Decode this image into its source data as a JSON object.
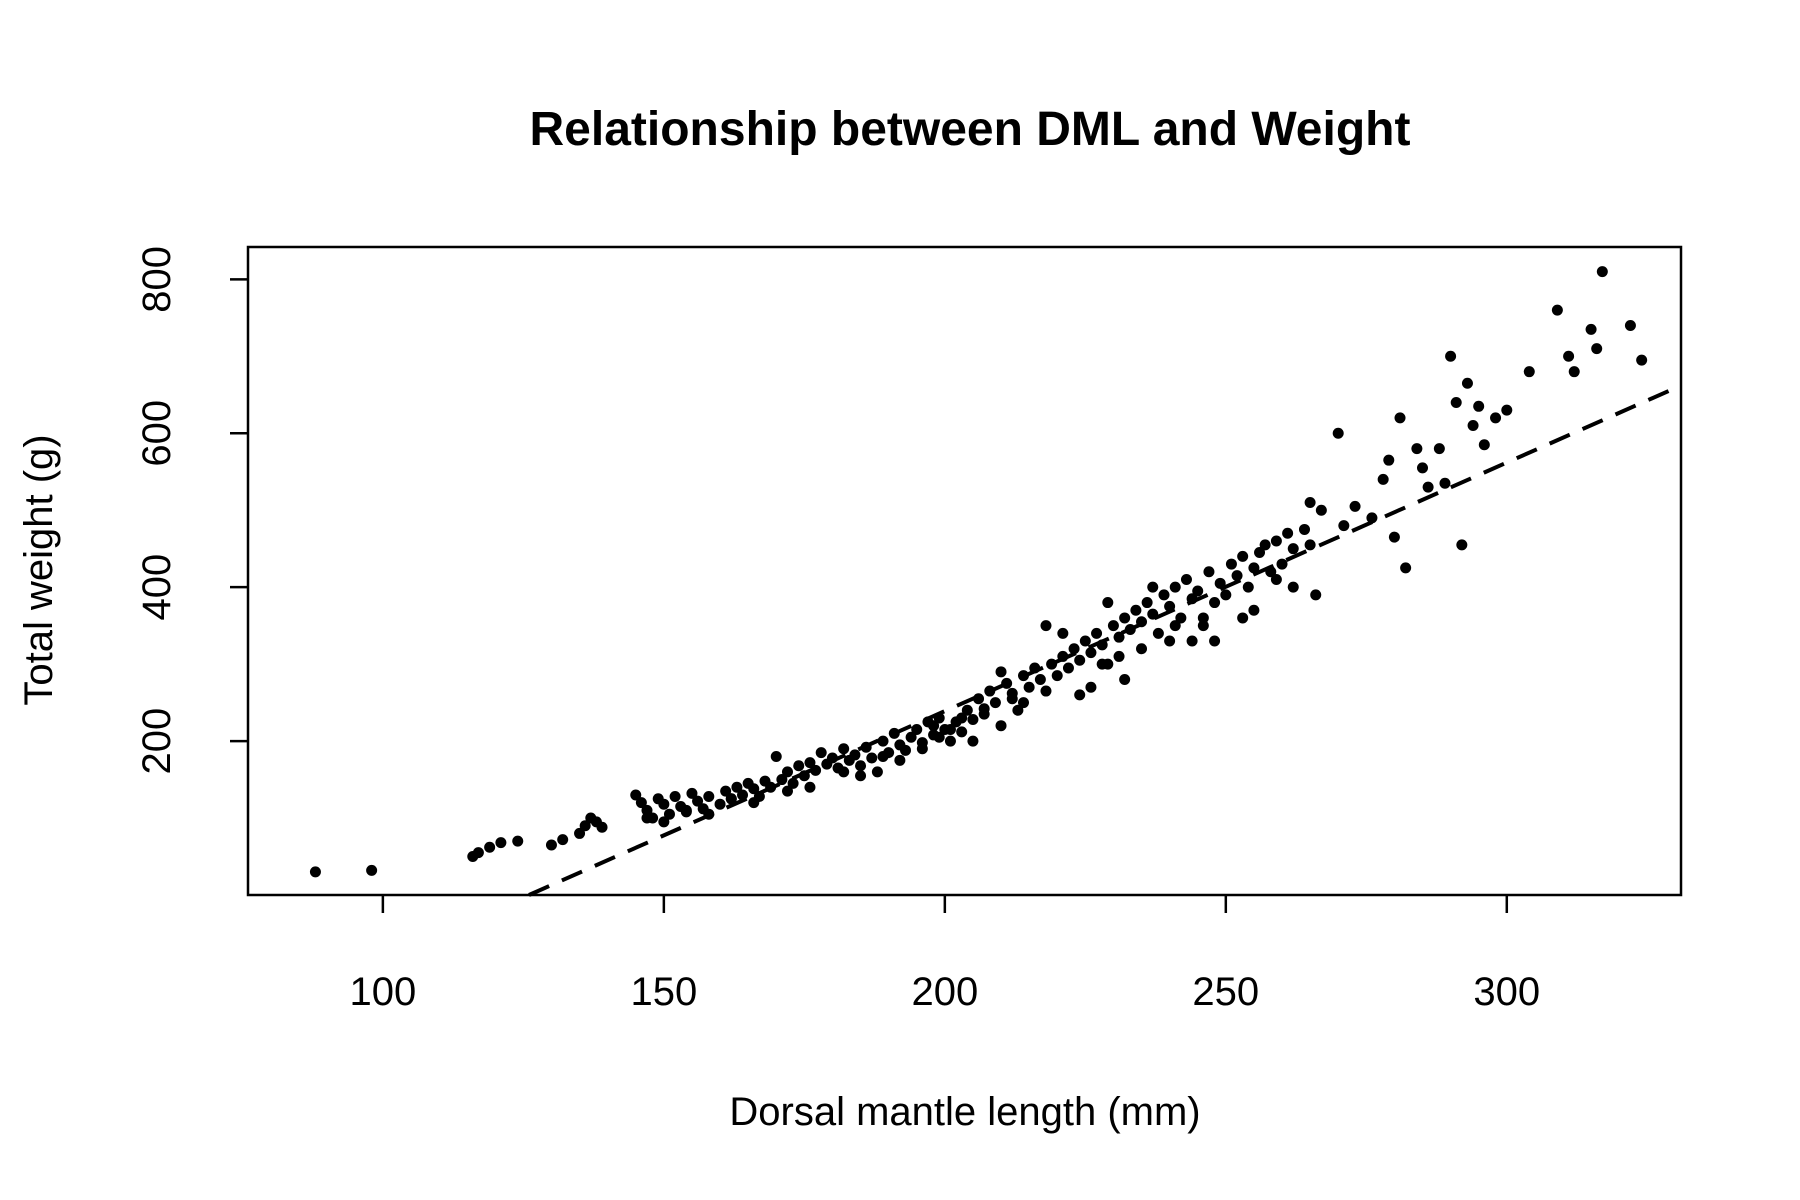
{
  "chart_data": {
    "type": "scatter",
    "title": "Relationship between DML and Weight",
    "xlabel": "Dorsal mantle length (mm)",
    "ylabel": "Total weight (g)",
    "xlim": [
      76,
      331
    ],
    "ylim": [
      0,
      842
    ],
    "xticks": [
      100,
      150,
      200,
      250,
      300
    ],
    "yticks": [
      200,
      400,
      600,
      800
    ],
    "xtick_labels": [
      "100",
      "150",
      "200",
      "250",
      "300"
    ],
    "ytick_labels": [
      "200",
      "400",
      "600",
      "800"
    ],
    "series": [
      {
        "name": "observations",
        "points": [
          [
            88,
            30
          ],
          [
            98,
            32
          ],
          [
            116,
            50
          ],
          [
            117,
            55
          ],
          [
            119,
            62
          ],
          [
            121,
            68
          ],
          [
            124,
            70
          ],
          [
            130,
            65
          ],
          [
            132,
            72
          ],
          [
            135,
            80
          ],
          [
            136,
            90
          ],
          [
            137,
            100
          ],
          [
            138,
            95
          ],
          [
            139,
            88
          ],
          [
            145,
            130
          ],
          [
            146,
            120
          ],
          [
            147,
            110
          ],
          [
            148,
            100
          ],
          [
            149,
            125
          ],
          [
            150,
            118
          ],
          [
            151,
            105
          ],
          [
            152,
            128
          ],
          [
            153,
            115
          ],
          [
            154,
            108
          ],
          [
            155,
            132
          ],
          [
            156,
            122
          ],
          [
            157,
            112
          ],
          [
            158,
            128
          ],
          [
            160,
            118
          ],
          [
            161,
            135
          ],
          [
            162,
            125
          ],
          [
            163,
            140
          ],
          [
            164,
            130
          ],
          [
            165,
            145
          ],
          [
            166,
            138
          ],
          [
            167,
            128
          ],
          [
            168,
            148
          ],
          [
            169,
            140
          ],
          [
            170,
            180
          ],
          [
            171,
            150
          ],
          [
            172,
            160
          ],
          [
            173,
            145
          ],
          [
            174,
            168
          ],
          [
            175,
            155
          ],
          [
            176,
            172
          ],
          [
            177,
            162
          ],
          [
            178,
            185
          ],
          [
            179,
            170
          ],
          [
            180,
            178
          ],
          [
            181,
            165
          ],
          [
            182,
            190
          ],
          [
            183,
            175
          ],
          [
            184,
            182
          ],
          [
            185,
            168
          ],
          [
            186,
            192
          ],
          [
            187,
            178
          ],
          [
            188,
            160
          ],
          [
            189,
            200
          ],
          [
            190,
            185
          ],
          [
            191,
            210
          ],
          [
            192,
            195
          ],
          [
            193,
            188
          ],
          [
            194,
            205
          ],
          [
            195,
            215
          ],
          [
            196,
            198
          ],
          [
            197,
            225
          ],
          [
            198,
            208
          ],
          [
            199,
            230
          ],
          [
            200,
            215
          ],
          [
            201,
            200
          ],
          [
            202,
            225
          ],
          [
            203,
            212
          ],
          [
            204,
            240
          ],
          [
            205,
            228
          ],
          [
            206,
            255
          ],
          [
            207,
            242
          ],
          [
            208,
            265
          ],
          [
            209,
            250
          ],
          [
            210,
            220
          ],
          [
            211,
            275
          ],
          [
            212,
            262
          ],
          [
            213,
            240
          ],
          [
            214,
            285
          ],
          [
            215,
            270
          ],
          [
            216,
            295
          ],
          [
            217,
            280
          ],
          [
            218,
            350
          ],
          [
            219,
            300
          ],
          [
            220,
            285
          ],
          [
            221,
            310
          ],
          [
            222,
            295
          ],
          [
            223,
            320
          ],
          [
            224,
            305
          ],
          [
            225,
            330
          ],
          [
            226,
            315
          ],
          [
            227,
            340
          ],
          [
            228,
            325
          ],
          [
            229,
            300
          ],
          [
            230,
            350
          ],
          [
            231,
            335
          ],
          [
            232,
            360
          ],
          [
            233,
            345
          ],
          [
            234,
            370
          ],
          [
            235,
            355
          ],
          [
            236,
            380
          ],
          [
            237,
            365
          ],
          [
            238,
            340
          ],
          [
            239,
            390
          ],
          [
            240,
            375
          ],
          [
            241,
            400
          ],
          [
            242,
            360
          ],
          [
            243,
            410
          ],
          [
            244,
            385
          ],
          [
            245,
            395
          ],
          [
            246,
            350
          ],
          [
            247,
            420
          ],
          [
            248,
            380
          ],
          [
            249,
            405
          ],
          [
            250,
            390
          ],
          [
            251,
            430
          ],
          [
            252,
            415
          ],
          [
            253,
            440
          ],
          [
            254,
            400
          ],
          [
            255,
            425
          ],
          [
            256,
            445
          ],
          [
            257,
            455
          ],
          [
            258,
            420
          ],
          [
            259,
            460
          ],
          [
            260,
            430
          ],
          [
            261,
            470
          ],
          [
            262,
            450
          ],
          [
            264,
            475
          ],
          [
            265,
            455
          ],
          [
            266,
            390
          ],
          [
            267,
            500
          ],
          [
            270,
            600
          ],
          [
            271,
            480
          ],
          [
            273,
            505
          ],
          [
            276,
            490
          ],
          [
            278,
            540
          ],
          [
            279,
            565
          ],
          [
            280,
            465
          ],
          [
            281,
            620
          ],
          [
            282,
            425
          ],
          [
            284,
            580
          ],
          [
            285,
            555
          ],
          [
            286,
            530
          ],
          [
            288,
            580
          ],
          [
            289,
            535
          ],
          [
            290,
            700
          ],
          [
            291,
            640
          ],
          [
            292,
            455
          ],
          [
            293,
            665
          ],
          [
            294,
            610
          ],
          [
            295,
            635
          ],
          [
            296,
            585
          ],
          [
            298,
            620
          ],
          [
            300,
            630
          ],
          [
            304,
            680
          ],
          [
            309,
            760
          ],
          [
            311,
            700
          ],
          [
            312,
            680
          ],
          [
            315,
            735
          ],
          [
            316,
            710
          ],
          [
            317,
            810
          ],
          [
            322,
            740
          ],
          [
            324,
            695
          ],
          [
            235,
            320
          ],
          [
            232,
            280
          ],
          [
            244,
            330
          ],
          [
            224,
            260
          ],
          [
            214,
            250
          ],
          [
            196,
            190
          ],
          [
            185,
            155
          ],
          [
            176,
            140
          ],
          [
            166,
            120
          ],
          [
            158,
            105
          ],
          [
            150,
            95
          ],
          [
            205,
            200
          ],
          [
            226,
            270
          ],
          [
            248,
            330
          ],
          [
            253,
            360
          ],
          [
            262,
            400
          ],
          [
            255,
            370
          ],
          [
            241,
            350
          ],
          [
            237,
            400
          ],
          [
            229,
            380
          ],
          [
            221,
            340
          ],
          [
            210,
            290
          ],
          [
            203,
            230
          ],
          [
            199,
            205
          ],
          [
            192,
            175
          ],
          [
            182,
            160
          ],
          [
            172,
            135
          ],
          [
            162,
            125
          ],
          [
            154,
            110
          ],
          [
            147,
            100
          ],
          [
            240,
            330
          ],
          [
            231,
            310
          ],
          [
            218,
            265
          ],
          [
            207,
            235
          ],
          [
            198,
            220
          ],
          [
            189,
            180
          ],
          [
            246,
            360
          ],
          [
            259,
            410
          ],
          [
            265,
            510
          ],
          [
            228,
            300
          ],
          [
            212,
            255
          ],
          [
            201,
            215
          ]
        ]
      },
      {
        "name": "fitted",
        "style": "dashed",
        "line": [
          [
            126,
            0
          ],
          [
            331,
            662
          ]
        ]
      }
    ]
  }
}
